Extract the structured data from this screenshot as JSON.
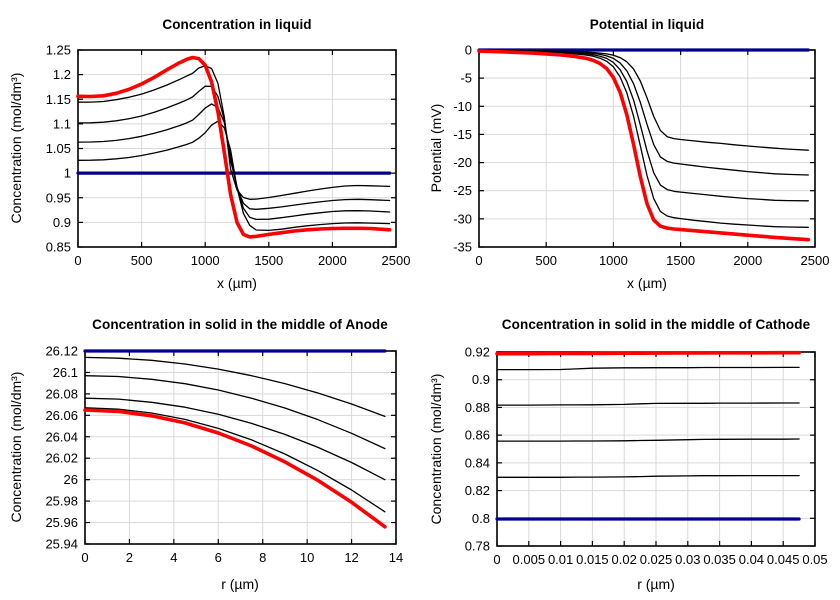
{
  "style": {
    "background": "#ffffff",
    "grid_color": "#d9d9d9",
    "axis_color": "#000000",
    "text_color": "#000000",
    "initial_line_color": "#00008b",
    "intermediate_line_color": "#000000",
    "final_line_color": "#ff0000"
  },
  "chart_data": [
    {
      "id": "concentration-in-liquid",
      "type": "line",
      "title": "Concentration in liquid",
      "xlabel": "x (µm)",
      "ylabel": "Concentration (mol/dm³)",
      "xlim": [
        0,
        2500
      ],
      "ylim": [
        0.85,
        1.25
      ],
      "grid": true,
      "legend": "none",
      "xticks": {
        "values": [
          0,
          500,
          1000,
          1500,
          2000,
          2500
        ],
        "labels": [
          "0",
          "500",
          "1000",
          "1500",
          "2000",
          "2500"
        ]
      },
      "yticks": {
        "values": [
          0.85,
          0.9,
          0.95,
          1,
          1.05,
          1.1,
          1.15,
          1.2,
          1.25
        ],
        "labels": [
          "0.85",
          "0.9",
          "0.95",
          "1",
          "1.05",
          "1.1",
          "1.15",
          "1.2",
          "1.25"
        ]
      },
      "x": [
        0,
        100,
        200,
        300,
        400,
        500,
        600,
        700,
        800,
        850,
        900,
        950,
        1000,
        1050,
        1100,
        1150,
        1200,
        1250,
        1300,
        1350,
        1400,
        1500,
        1600,
        1700,
        1800,
        1900,
        2000,
        2100,
        2200,
        2300,
        2450
      ],
      "series": [
        {
          "name": "initial",
          "color": "#00008b",
          "width": 3.2,
          "x": [
            0,
            2450
          ],
          "y": [
            1,
            1
          ]
        },
        {
          "name": "t1",
          "color": "#000000",
          "width": 1.3,
          "y": [
            1.026,
            1.0262,
            1.027,
            1.029,
            1.0318,
            1.0358,
            1.0408,
            1.0468,
            1.054,
            1.058,
            1.0625,
            1.071,
            1.082,
            1.0975,
            1.1055,
            1.092,
            1.047,
            0.97,
            0.9185,
            0.894,
            0.8845,
            0.8838,
            0.8862,
            0.89,
            0.893,
            0.8955,
            0.8975,
            0.8988,
            0.8992,
            0.8985,
            0.8975
          ]
        },
        {
          "name": "t2",
          "color": "#000000",
          "width": 1.3,
          "y": [
            1.063,
            1.0632,
            1.0642,
            1.0665,
            1.07,
            1.0748,
            1.081,
            1.0882,
            1.0968,
            1.1015,
            1.1075,
            1.119,
            1.132,
            1.1405,
            1.133,
            1.103,
            1.033,
            0.972,
            0.9285,
            0.9105,
            0.906,
            0.9065,
            0.9095,
            0.913,
            0.9165,
            0.9195,
            0.922,
            0.9235,
            0.9238,
            0.923,
            0.921
          ]
        },
        {
          "name": "t3",
          "color": "#000000",
          "width": 1.3,
          "y": [
            1.102,
            1.1022,
            1.1035,
            1.1062,
            1.1105,
            1.116,
            1.1235,
            1.1325,
            1.1425,
            1.148,
            1.1545,
            1.166,
            1.1765,
            1.176,
            1.156,
            1.109,
            1.026,
            0.9715,
            0.9385,
            0.9275,
            0.9265,
            0.9285,
            0.9315,
            0.935,
            0.9385,
            0.9415,
            0.9445,
            0.9462,
            0.9468,
            0.946,
            0.9445
          ]
        },
        {
          "name": "t4",
          "color": "#000000",
          "width": 1.3,
          "y": [
            1.144,
            1.1442,
            1.1455,
            1.149,
            1.154,
            1.1605,
            1.169,
            1.179,
            1.1905,
            1.1965,
            1.2025,
            1.2135,
            1.218,
            1.2125,
            1.1825,
            1.114,
            1.008,
            0.966,
            0.9505,
            0.9468,
            0.9472,
            0.9505,
            0.9545,
            0.959,
            0.9635,
            0.9675,
            0.971,
            0.9738,
            0.9748,
            0.9742,
            0.973
          ]
        },
        {
          "name": "final",
          "color": "#ff0000",
          "width": 3.6,
          "y": [
            1.156,
            1.1555,
            1.157,
            1.162,
            1.17,
            1.181,
            1.1945,
            1.21,
            1.2245,
            1.2305,
            1.2348,
            1.2325,
            1.219,
            1.185,
            1.125,
            1.042,
            0.9565,
            0.9,
            0.8755,
            0.8705,
            0.8715,
            0.8755,
            0.879,
            0.8825,
            0.885,
            0.8865,
            0.8875,
            0.888,
            0.888,
            0.8875,
            0.885
          ]
        }
      ]
    },
    {
      "id": "potential-in-liquid",
      "type": "line",
      "title": "Potential in liquid",
      "xlabel": "x (µm)",
      "ylabel": "Potential (mV)",
      "xlim": [
        0,
        2500
      ],
      "ylim": [
        -35,
        0
      ],
      "grid": true,
      "legend": "none",
      "xticks": {
        "values": [
          0,
          500,
          1000,
          1500,
          2000,
          2500
        ],
        "labels": [
          "0",
          "500",
          "1000",
          "1500",
          "2000",
          "2500"
        ]
      },
      "yticks": {
        "values": [
          0,
          -5,
          -10,
          -15,
          -20,
          -25,
          -30,
          -35
        ],
        "labels": [
          "0",
          "-5",
          "-10",
          "-15",
          "-20",
          "-25",
          "-30",
          "-35"
        ]
      },
      "x": [
        0,
        200,
        400,
        600,
        700,
        800,
        850,
        900,
        950,
        1000,
        1050,
        1100,
        1150,
        1200,
        1250,
        1300,
        1350,
        1400,
        1450,
        1500,
        1600,
        1700,
        1800,
        1900,
        2000,
        2100,
        2200,
        2300,
        2450
      ],
      "series": [
        {
          "name": "initial",
          "color": "#00008b",
          "width": 3.2,
          "x": [
            0,
            2450
          ],
          "y": [
            0,
            0
          ]
        },
        {
          "name": "t1",
          "color": "#000000",
          "width": 1.3,
          "y": [
            -0.05,
            -0.1,
            -0.15,
            -0.22,
            -0.28,
            -0.38,
            -0.45,
            -0.55,
            -0.7,
            -0.95,
            -1.35,
            -2.1,
            -3.4,
            -5.5,
            -8.5,
            -11.8,
            -14.3,
            -15.4,
            -15.75,
            -15.9,
            -16.15,
            -16.4,
            -16.6,
            -16.85,
            -17.05,
            -17.25,
            -17.45,
            -17.6,
            -17.8
          ]
        },
        {
          "name": "t2",
          "color": "#000000",
          "width": 1.3,
          "y": [
            -0.06,
            -0.12,
            -0.2,
            -0.3,
            -0.38,
            -0.52,
            -0.62,
            -0.78,
            -1.05,
            -1.5,
            -2.3,
            -3.7,
            -6.0,
            -9.3,
            -13.2,
            -16.8,
            -19.0,
            -19.8,
            -20.1,
            -20.25,
            -20.55,
            -20.85,
            -21.1,
            -21.35,
            -21.6,
            -21.8,
            -22.0,
            -22.1,
            -22.2
          ]
        },
        {
          "name": "t3",
          "color": "#000000",
          "width": 1.3,
          "y": [
            -0.07,
            -0.15,
            -0.25,
            -0.4,
            -0.5,
            -0.7,
            -0.85,
            -1.1,
            -1.5,
            -2.2,
            -3.5,
            -5.6,
            -8.9,
            -13.3,
            -17.9,
            -21.8,
            -24.0,
            -24.8,
            -25.1,
            -25.25,
            -25.5,
            -25.75,
            -26.0,
            -26.2,
            -26.4,
            -26.55,
            -26.7,
            -26.75,
            -26.8
          ]
        },
        {
          "name": "t4",
          "color": "#000000",
          "width": 1.3,
          "y": [
            -0.08,
            -0.17,
            -0.3,
            -0.5,
            -0.65,
            -0.9,
            -1.1,
            -1.45,
            -2.0,
            -3.0,
            -4.8,
            -7.6,
            -11.8,
            -17.0,
            -22.3,
            -26.4,
            -28.7,
            -29.5,
            -29.8,
            -29.95,
            -30.25,
            -30.5,
            -30.75,
            -30.95,
            -31.1,
            -31.25,
            -31.4,
            -31.45,
            -31.5
          ]
        },
        {
          "name": "final",
          "color": "#ff0000",
          "width": 3.6,
          "y": [
            -0.2,
            -0.35,
            -0.55,
            -0.85,
            -1.1,
            -1.5,
            -1.85,
            -2.4,
            -3.3,
            -4.9,
            -7.5,
            -11.5,
            -16.8,
            -22.5,
            -27.3,
            -30.2,
            -31.3,
            -31.65,
            -31.8,
            -31.9,
            -32.1,
            -32.3,
            -32.5,
            -32.7,
            -32.9,
            -33.1,
            -33.3,
            -33.45,
            -33.7
          ]
        }
      ]
    },
    {
      "id": "concentration-in-solid-anode",
      "type": "line",
      "title": "Concentration in solid in the middle of Anode",
      "xlabel": "r (µm)",
      "ylabel": "Concentration (mol/dm³)",
      "xlim": [
        0,
        14
      ],
      "ylim": [
        25.94,
        26.12
      ],
      "grid": true,
      "legend": "none",
      "xticks": {
        "values": [
          0,
          2,
          4,
          6,
          8,
          10,
          12,
          14
        ],
        "labels": [
          "0",
          "2",
          "4",
          "6",
          "8",
          "10",
          "12",
          "14"
        ]
      },
      "yticks": {
        "values": [
          25.94,
          25.96,
          25.98,
          26,
          26.02,
          26.04,
          26.06,
          26.08,
          26.1,
          26.12
        ],
        "labels": [
          "25.94",
          "25.96",
          "25.98",
          "26",
          "26.02",
          "26.04",
          "26.06",
          "26.08",
          "26.1",
          "26.12"
        ]
      },
      "x": [
        0,
        1.5,
        3,
        4.5,
        6,
        7.5,
        9,
        10.5,
        12,
        13.5
      ],
      "series": [
        {
          "name": "initial",
          "color": "#00008b",
          "width": 3.2,
          "x": [
            0,
            13.5
          ],
          "y": [
            26.12,
            26.12
          ]
        },
        {
          "name": "t1",
          "color": "#000000",
          "width": 1.3,
          "y": [
            26.114,
            26.1133,
            26.1113,
            26.1079,
            26.1031,
            26.097,
            26.0896,
            26.0807,
            26.0706,
            26.059
          ]
        },
        {
          "name": "t2",
          "color": "#000000",
          "width": 1.3,
          "y": [
            26.097,
            26.0962,
            26.0936,
            26.0895,
            26.0836,
            26.076,
            26.0668,
            26.0558,
            26.0432,
            26.029
          ]
        },
        {
          "name": "t3",
          "color": "#000000",
          "width": 1.3,
          "y": [
            26.076,
            26.0751,
            26.0722,
            26.0676,
            26.061,
            26.0525,
            26.0422,
            26.03,
            26.016,
            26.0
          ]
        },
        {
          "name": "t4",
          "color": "#000000",
          "width": 1.3,
          "y": [
            26.067,
            26.0658,
            26.0622,
            26.0562,
            26.0478,
            26.0371,
            26.0239,
            26.0083,
            25.9904,
            25.97
          ]
        },
        {
          "name": "final",
          "color": "#ff0000",
          "width": 3.6,
          "y": [
            26.065,
            26.0637,
            26.0596,
            26.0529,
            26.0435,
            26.0314,
            26.0166,
            25.9991,
            25.9789,
            25.956
          ]
        }
      ]
    },
    {
      "id": "concentration-in-solid-cathode",
      "type": "line",
      "title": "Concentration in solid in the middle of Cathode",
      "xlabel": "r (µm)",
      "ylabel": "Concentration (mol/dm³)",
      "xlim": [
        0,
        0.05
      ],
      "ylim": [
        0.78,
        0.92
      ],
      "grid": true,
      "legend": "none",
      "xticks": {
        "values": [
          0,
          0.005,
          0.01,
          0.015,
          0.02,
          0.025,
          0.03,
          0.035,
          0.04,
          0.045,
          0.05
        ],
        "labels": [
          "0",
          "0.005",
          "0.01",
          "0.015",
          "0.02",
          "0.025",
          "0.03",
          "0.035",
          "0.04",
          "0.045",
          "0.05"
        ]
      },
      "yticks": {
        "values": [
          0.78,
          0.8,
          0.82,
          0.84,
          0.86,
          0.88,
          0.9,
          0.92
        ],
        "labels": [
          "0.78",
          "0.8",
          "0.82",
          "0.84",
          "0.86",
          "0.88",
          "0.9",
          "0.92"
        ]
      },
      "x": [
        0,
        0.005,
        0.01,
        0.0125,
        0.015,
        0.02,
        0.0225,
        0.025,
        0.03,
        0.0325,
        0.035,
        0.04,
        0.045,
        0.0475
      ],
      "series": [
        {
          "name": "initial",
          "color": "#00008b",
          "width": 3.2,
          "x": [
            0,
            0.0475
          ],
          "y": [
            0.7995,
            0.7995
          ]
        },
        {
          "name": "t1",
          "color": "#000000",
          "width": 1.3,
          "y": [
            0.8296,
            0.8296,
            0.8296,
            0.8297,
            0.8297,
            0.8299,
            0.8301,
            0.8304,
            0.8306,
            0.8307,
            0.8307,
            0.8308,
            0.8308,
            0.8308
          ]
        },
        {
          "name": "t2",
          "color": "#000000",
          "width": 1.3,
          "y": [
            0.8557,
            0.8557,
            0.8557,
            0.8558,
            0.8558,
            0.8559,
            0.8561,
            0.8563,
            0.8567,
            0.8569,
            0.857,
            0.8571,
            0.8571,
            0.8572
          ]
        },
        {
          "name": "t3",
          "color": "#000000",
          "width": 1.3,
          "y": [
            0.8817,
            0.8817,
            0.8818,
            0.8818,
            0.8819,
            0.8822,
            0.8826,
            0.8829,
            0.883,
            0.883,
            0.8831,
            0.8831,
            0.8832,
            0.8832
          ]
        },
        {
          "name": "t4",
          "color": "#000000",
          "width": 1.3,
          "y": [
            0.9073,
            0.9073,
            0.9074,
            0.9078,
            0.9083,
            0.9086,
            0.9086,
            0.9087,
            0.9087,
            0.9088,
            0.9088,
            0.9088,
            0.9089,
            0.9089
          ]
        },
        {
          "name": "final",
          "color": "#ff0000",
          "width": 3.6,
          "y": [
            0.9188,
            0.9188,
            0.9189,
            0.9189,
            0.919,
            0.9191,
            0.9191,
            0.9192,
            0.9193,
            0.9193,
            0.9194,
            0.9194,
            0.9195,
            0.9195
          ]
        }
      ]
    }
  ]
}
